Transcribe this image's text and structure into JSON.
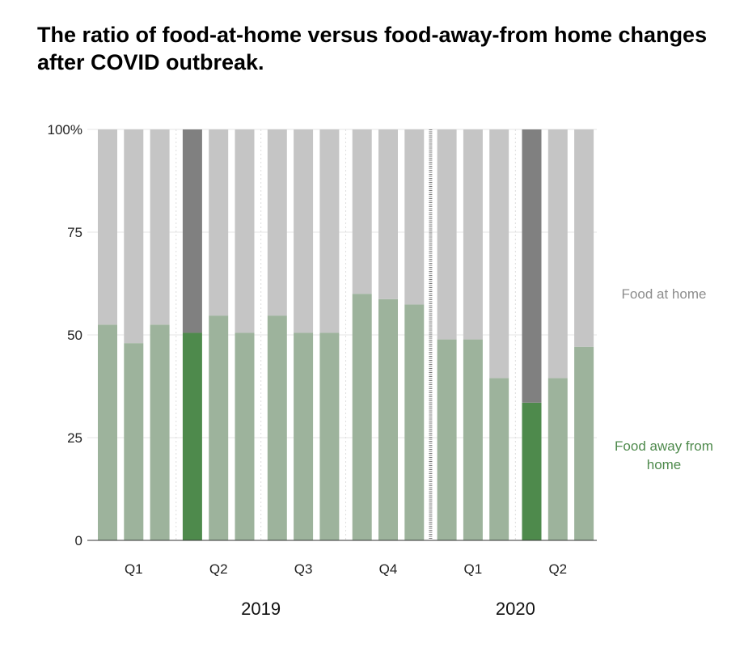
{
  "title": "The ratio of food-at-home versus food-away-from home changes after COVID outbreak.",
  "chart_data": {
    "type": "bar",
    "stacked": true,
    "normalized": true,
    "categories": [
      "2019-Q1-1",
      "2019-Q1-2",
      "2019-Q1-3",
      "2019-Q2-1",
      "2019-Q2-2",
      "2019-Q2-3",
      "2019-Q3-1",
      "2019-Q3-2",
      "2019-Q3-3",
      "2019-Q4-1",
      "2019-Q4-2",
      "2019-Q4-3",
      "2020-Q1-1",
      "2020-Q1-2",
      "2020-Q1-3",
      "2020-Q2-1",
      "2020-Q2-2",
      "2020-Q2-3"
    ],
    "series": [
      {
        "name": "Food away from home",
        "values": [
          52.5,
          48,
          52.5,
          50.5,
          54.7,
          50.5,
          54.7,
          50.5,
          50.5,
          60,
          58.7,
          57.4,
          48.9,
          48.9,
          39.5,
          33.5,
          39.5,
          47.1
        ]
      },
      {
        "name": "Food at home",
        "values": [
          47.5,
          52,
          47.5,
          49.5,
          45.3,
          49.5,
          45.3,
          49.5,
          49.5,
          40,
          41.3,
          42.6,
          51.1,
          51.1,
          60.5,
          66.5,
          60.5,
          52.9
        ]
      }
    ],
    "highlighted_indices": [
      3,
      15
    ],
    "yticks": [
      "0",
      "25",
      "50",
      "75",
      "100%"
    ],
    "ylim": [
      0,
      100
    ],
    "quarter_labels": [
      "Q1",
      "Q2",
      "Q3",
      "Q4",
      "Q1",
      "Q2"
    ],
    "years": [
      "2019",
      "2020"
    ],
    "legend": [
      {
        "label": "Food at home",
        "color": "#8c8c8c"
      },
      {
        "label": "Food away from home",
        "color": "#4e8a4c"
      }
    ],
    "colors": {
      "away": "#9db39c",
      "home": "#c5c5c5",
      "away_highlight": "#4e8a4c",
      "home_highlight": "#808080"
    },
    "grid": true,
    "legend_position": "right"
  }
}
